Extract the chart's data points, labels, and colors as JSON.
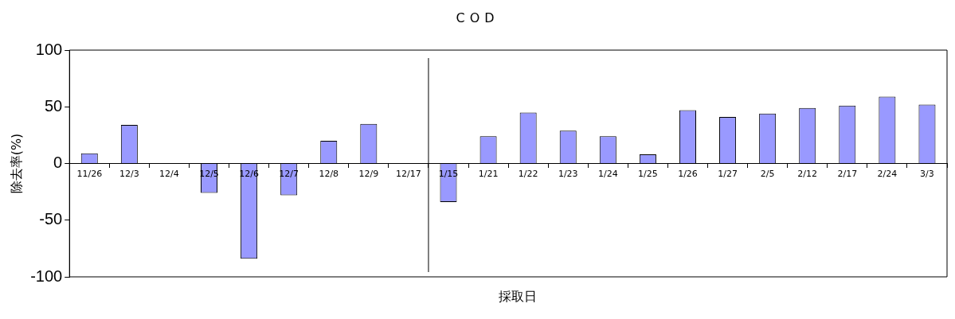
{
  "chart_data": {
    "type": "bar",
    "title": "COD",
    "xlabel": "採取日",
    "ylabel": "除去率(%)",
    "categories": [
      "11/26",
      "12/3",
      "12/4",
      "12/5",
      "12/6",
      "12/7",
      "12/8",
      "12/9",
      "12/17",
      "1/15",
      "1/21",
      "1/22",
      "1/23",
      "1/24",
      "1/25",
      "1/26",
      "1/27",
      "2/5",
      "2/12",
      "2/17",
      "2/24",
      "3/3"
    ],
    "values": [
      9,
      34,
      null,
      -26,
      -84,
      -28,
      20,
      35,
      null,
      -34,
      24,
      45,
      29,
      24,
      8,
      47,
      41,
      44,
      49,
      51,
      59,
      52
    ],
    "color": "#9999ff",
    "ylim": [
      -100,
      100
    ],
    "yticks": [
      -100,
      -50,
      0,
      50,
      100
    ],
    "grid": false,
    "legend": false
  }
}
